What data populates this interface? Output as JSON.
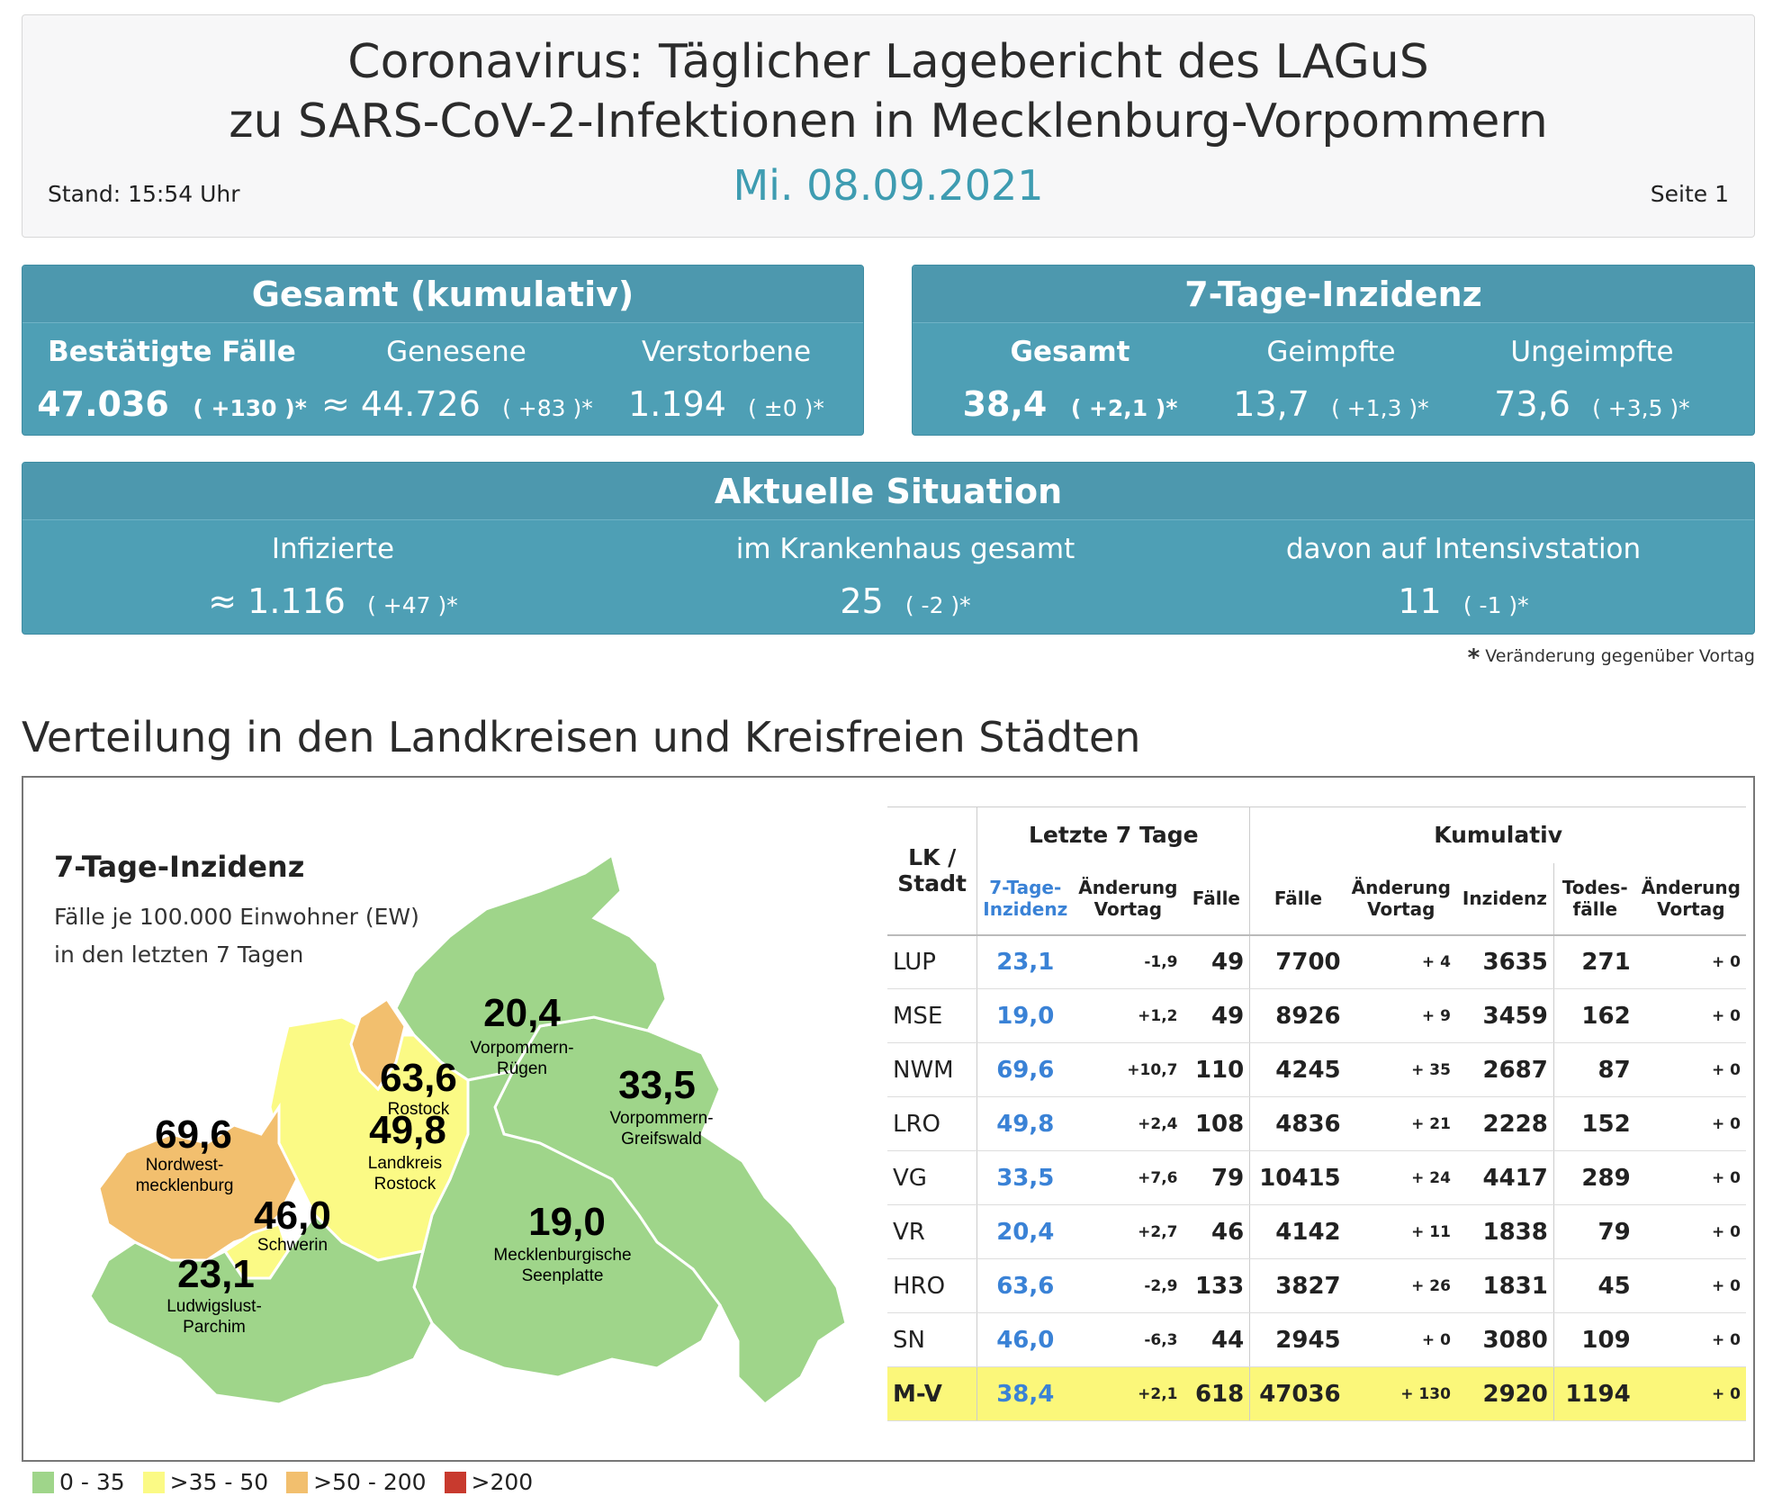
{
  "header": {
    "title_line1": "Coronavirus: Täglicher Lagebericht des LAGuS",
    "title_line2": "zu SARS-CoV-2-Infektionen in Mecklenburg-Vorpommern",
    "stand": "Stand: 15:54 Uhr",
    "date": "Mi. 08.09.2021",
    "page": "Seite 1"
  },
  "gesamt": {
    "title": "Gesamt (kumulativ)",
    "items": [
      {
        "label": "Bestätigte Fälle",
        "value": "47.036",
        "delta": "( +130 )*"
      },
      {
        "label": "Genesene",
        "value": "≈ 44.726",
        "delta": "( +83 )*"
      },
      {
        "label": "Verstorbene",
        "value": "1.194",
        "delta": "( ±0 )*"
      }
    ]
  },
  "inzidenz": {
    "title": "7-Tage-Inzidenz",
    "items": [
      {
        "label": "Gesamt",
        "value": "38,4",
        "delta": "( +2,1 )*"
      },
      {
        "label": "Geimpfte",
        "value": "13,7",
        "delta": "( +1,3 )*"
      },
      {
        "label": "Ungeimpfte",
        "value": "73,6",
        "delta": "( +3,5 )*"
      }
    ]
  },
  "aktuell": {
    "title": "Aktuelle Situation",
    "items": [
      {
        "label": "Infizierte",
        "value": "≈ 1.116",
        "delta": "( +47 )*"
      },
      {
        "label": "im Krankenhaus gesamt",
        "value": "25",
        "delta": "( -2 )*"
      },
      {
        "label": "davon auf Intensivstation",
        "value": "11",
        "delta": "( -1 )*"
      }
    ]
  },
  "footnote": {
    "star": "*",
    "text": "Veränderung gegenüber Vortag"
  },
  "section_title": "Verteilung in den Landkreisen und Kreisfreien Städten",
  "map": {
    "title": "7-Tage-Inzidenz",
    "sub1": "Fälle je 100.000 Einwohner (EW)",
    "sub2": "in den letzten 7 Tagen",
    "colors": {
      "green": "#9fd58a",
      "yellow": "#fbfa85",
      "orange": "#f2bf6e",
      "red": "#c83a2e"
    },
    "regions": [
      {
        "value": "20,4",
        "name1": "Vorpommern-",
        "name2": "Rügen"
      },
      {
        "value": "63,6",
        "name1": "Rostock",
        "name2": ""
      },
      {
        "value": "33,5",
        "name1": "Vorpommern-",
        "name2": "Greifswald"
      },
      {
        "value": "69,6",
        "name1": "Nordwest-",
        "name2": "mecklenburg"
      },
      {
        "value": "49,8",
        "name1": "Landkreis",
        "name2": "Rostock"
      },
      {
        "value": "46,0",
        "name1": "Schwerin",
        "name2": ""
      },
      {
        "value": "19,0",
        "name1": "Mecklenburgische",
        "name2": "Seenplatte"
      },
      {
        "value": "23,1",
        "name1": "Ludwigslust-",
        "name2": "Parchim"
      }
    ]
  },
  "table": {
    "header_lk": [
      "LK /",
      "Stadt"
    ],
    "group_last7": "Letzte 7 Tage",
    "group_kum": "Kumulativ",
    "col_inz": [
      "7-Tage-",
      "Inzidenz"
    ],
    "col_aend": [
      "Änderung",
      "Vortag"
    ],
    "col_faelle": "Fälle",
    "col_faelle2": "Fälle",
    "col_aend2": [
      "Änderung",
      "Vortag"
    ],
    "col_inzidenz": "Inzidenz",
    "col_tod": [
      "Todes-",
      "fälle"
    ],
    "col_aend3": [
      "Änderung",
      "Vortag"
    ],
    "rows": [
      {
        "name": "LUP",
        "inz": "23,1",
        "d7": "-1,9",
        "f7": "49",
        "f": "7700",
        "df": "+ 4",
        "i": "3635",
        "t": "271",
        "dt": "+ 0"
      },
      {
        "name": "MSE",
        "inz": "19,0",
        "d7": "+1,2",
        "f7": "49",
        "f": "8926",
        "df": "+ 9",
        "i": "3459",
        "t": "162",
        "dt": "+ 0"
      },
      {
        "name": "NWM",
        "inz": "69,6",
        "d7": "+10,7",
        "f7": "110",
        "f": "4245",
        "df": "+ 35",
        "i": "2687",
        "t": "87",
        "dt": "+ 0"
      },
      {
        "name": "LRO",
        "inz": "49,8",
        "d7": "+2,4",
        "f7": "108",
        "f": "4836",
        "df": "+ 21",
        "i": "2228",
        "t": "152",
        "dt": "+ 0"
      },
      {
        "name": "VG",
        "inz": "33,5",
        "d7": "+7,6",
        "f7": "79",
        "f": "10415",
        "df": "+ 24",
        "i": "4417",
        "t": "289",
        "dt": "+ 0"
      },
      {
        "name": "VR",
        "inz": "20,4",
        "d7": "+2,7",
        "f7": "46",
        "f": "4142",
        "df": "+ 11",
        "i": "1838",
        "t": "79",
        "dt": "+ 0"
      },
      {
        "name": "HRO",
        "inz": "63,6",
        "d7": "-2,9",
        "f7": "133",
        "f": "3827",
        "df": "+ 26",
        "i": "1831",
        "t": "45",
        "dt": "+ 0"
      },
      {
        "name": "SN",
        "inz": "46,0",
        "d7": "-6,3",
        "f7": "44",
        "f": "2945",
        "df": "+ 0",
        "i": "3080",
        "t": "109",
        "dt": "+ 0"
      }
    ],
    "total": {
      "name": "M-V",
      "inz": "38,4",
      "d7": "+2,1",
      "f7": "618",
      "f": "47036",
      "df": "+ 130",
      "i": "2920",
      "t": "1194",
      "dt": "+ 0"
    }
  },
  "legend": [
    {
      "label": "0 - 35",
      "color": "#9fd58a"
    },
    {
      "label": ">35 - 50",
      "color": "#fbfa85"
    },
    {
      "label": ">50 - 200",
      "color": "#f2bf6e"
    },
    {
      "label": ">200",
      "color": "#c83a2e"
    }
  ]
}
